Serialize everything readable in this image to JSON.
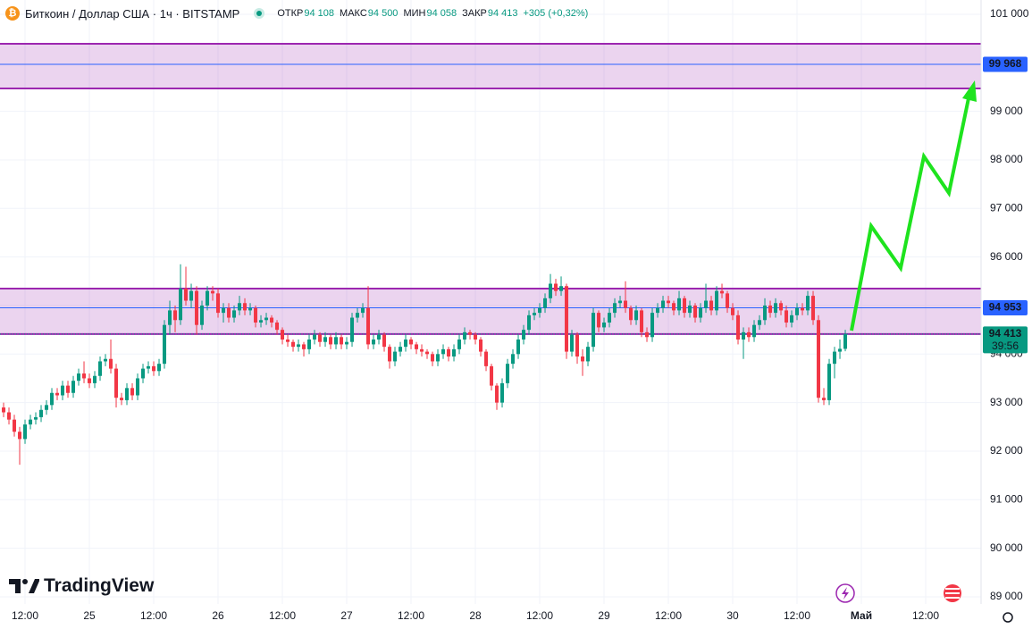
{
  "chart_data": {
    "type": "candlestick",
    "title": "Биткоин / Доллар США · 1ч · BITSTAMP",
    "ohlc_header": [
      {
        "label": "ОТКР",
        "value": "94 108"
      },
      {
        "label": "МАКС",
        "value": "94 500"
      },
      {
        "label": "МИН",
        "value": "94 058"
      },
      {
        "label": "ЗАКР",
        "value": "94 413"
      }
    ],
    "change": "+305 (+0,32%)",
    "watermark": "TradingView",
    "up_color": "#089981",
    "down_color": "#f23645",
    "zone_color": "#9c27b0",
    "line_color": "#2962ff",
    "xlim": [
      -0.67,
      182.33
    ],
    "ylim": [
      88852,
      101294
    ],
    "grid": true,
    "xticks": [
      {
        "value": 4,
        "label": "12:00"
      },
      {
        "value": 16,
        "label": "25"
      },
      {
        "value": 28,
        "label": "12:00"
      },
      {
        "value": 40,
        "label": "26"
      },
      {
        "value": 52,
        "label": "12:00"
      },
      {
        "value": 64,
        "label": "27"
      },
      {
        "value": 76,
        "label": "12:00"
      },
      {
        "value": 88,
        "label": "28"
      },
      {
        "value": 100,
        "label": "12:00"
      },
      {
        "value": 112,
        "label": "29"
      },
      {
        "value": 124,
        "label": "12:00"
      },
      {
        "value": 136,
        "label": "30"
      },
      {
        "value": 148,
        "label": "12:00"
      },
      {
        "value": 160,
        "label": "Май"
      },
      {
        "value": 172,
        "label": "12:00"
      }
    ],
    "yticks": [
      {
        "value": 89000,
        "label": "89 000"
      },
      {
        "value": 90000,
        "label": "90 000"
      },
      {
        "value": 91000,
        "label": "91 000"
      },
      {
        "value": 92000,
        "label": "92 000"
      },
      {
        "value": 93000,
        "label": "93 000"
      },
      {
        "value": 94000,
        "label": "94 000"
      },
      {
        "value": 95000,
        "label": "95 000"
      },
      {
        "value": 96000,
        "label": "96 000"
      },
      {
        "value": 97000,
        "label": "97 000"
      },
      {
        "value": 98000,
        "label": "98 000"
      },
      {
        "value": 99000,
        "label": "99 000"
      },
      {
        "value": 101000,
        "label": "101 000"
      }
    ],
    "zones": [
      [
        99472,
        100393
      ],
      [
        94413,
        95349
      ]
    ],
    "price_lines": [
      {
        "value": 99968,
        "label": "99 968",
        "color": "#2962ff"
      },
      {
        "value": 94953,
        "label": "94 953",
        "color": "#2962ff"
      },
      {
        "value": 94413,
        "label": "94 413",
        "color": "#089981",
        "countdown": "39:56"
      }
    ],
    "candles": [
      [
        92900,
        93000,
        92700,
        92800
      ],
      [
        92800,
        92900,
        92550,
        92650
      ],
      [
        92650,
        92750,
        92300,
        92400
      ],
      [
        92400,
        92500,
        91720,
        92250
      ],
      [
        92250,
        92650,
        92150,
        92550
      ],
      [
        92550,
        92750,
        92450,
        92650
      ],
      [
        92650,
        92800,
        92550,
        92700
      ],
      [
        92700,
        92950,
        92600,
        92850
      ],
      [
        92850,
        93050,
        92750,
        92950
      ],
      [
        92950,
        93300,
        92850,
        93200
      ],
      [
        93200,
        93300,
        93050,
        93150
      ],
      [
        93150,
        93450,
        93050,
        93350
      ],
      [
        93350,
        93450,
        93100,
        93200
      ],
      [
        93200,
        93550,
        93100,
        93450
      ],
      [
        93450,
        93700,
        93350,
        93600
      ],
      [
        93600,
        93850,
        93400,
        93500
      ],
      [
        93500,
        93600,
        93300,
        93400
      ],
      [
        93400,
        93650,
        93300,
        93550
      ],
      [
        93550,
        93950,
        93450,
        93850
      ],
      [
        93850,
        94000,
        93750,
        93900
      ],
      [
        93900,
        94300,
        93600,
        93700
      ],
      [
        93700,
        93800,
        92900,
        93100
      ],
      [
        93100,
        93200,
        92950,
        93050
      ],
      [
        93050,
        93400,
        92950,
        93300
      ],
      [
        93300,
        93400,
        93050,
        93150
      ],
      [
        93150,
        93600,
        93050,
        93500
      ],
      [
        93500,
        93800,
        93400,
        93700
      ],
      [
        93700,
        93850,
        93600,
        93750
      ],
      [
        93750,
        93850,
        93550,
        93650
      ],
      [
        93650,
        93900,
        93550,
        93800
      ],
      [
        93800,
        94700,
        93700,
        94600
      ],
      [
        94600,
        95100,
        94400,
        94900
      ],
      [
        94900,
        95000,
        94450,
        94700
      ],
      [
        94700,
        95850,
        94600,
        95350
      ],
      [
        95350,
        95800,
        95000,
        95100
      ],
      [
        95100,
        95450,
        94950,
        95300
      ],
      [
        95300,
        95400,
        94400,
        94600
      ],
      [
        94600,
        95100,
        94500,
        95000
      ],
      [
        95000,
        95400,
        94900,
        95300
      ],
      [
        95300,
        95400,
        95100,
        95250
      ],
      [
        95250,
        95350,
        94750,
        94850
      ],
      [
        94850,
        95050,
        94650,
        94950
      ],
      [
        94950,
        95050,
        94650,
        94750
      ],
      [
        94750,
        95000,
        94650,
        94900
      ],
      [
        94900,
        95200,
        94800,
        95050
      ],
      [
        95050,
        95150,
        94800,
        94900
      ],
      [
        94900,
        95050,
        94800,
        94950
      ],
      [
        94950,
        95000,
        94550,
        94650
      ],
      [
        94650,
        94800,
        94550,
        94700
      ],
      [
        94700,
        94850,
        94600,
        94750
      ],
      [
        94750,
        94800,
        94550,
        94650
      ],
      [
        94650,
        94700,
        94400,
        94500
      ],
      [
        94500,
        94550,
        94200,
        94300
      ],
      [
        94300,
        94400,
        94150,
        94250
      ],
      [
        94250,
        94300,
        94050,
        94150
      ],
      [
        94150,
        94300,
        94050,
        94200
      ],
      [
        94200,
        94250,
        93950,
        94100
      ],
      [
        94100,
        94400,
        94000,
        94300
      ],
      [
        94300,
        94500,
        94200,
        94400
      ],
      [
        94400,
        94450,
        94150,
        94250
      ],
      [
        94250,
        94450,
        94150,
        94350
      ],
      [
        94350,
        94400,
        94100,
        94200
      ],
      [
        94200,
        94450,
        94100,
        94350
      ],
      [
        94350,
        94400,
        94100,
        94200
      ],
      [
        94200,
        94350,
        94100,
        94250
      ],
      [
        94250,
        94850,
        94150,
        94750
      ],
      [
        94750,
        94950,
        94650,
        94850
      ],
      [
        94850,
        95050,
        94750,
        94950
      ],
      [
        94950,
        95400,
        94100,
        94200
      ],
      [
        94200,
        94400,
        94100,
        94300
      ],
      [
        94300,
        94500,
        94200,
        94400
      ],
      [
        94400,
        94450,
        94050,
        94150
      ],
      [
        94150,
        94200,
        93700,
        93850
      ],
      [
        93850,
        94150,
        93750,
        94050
      ],
      [
        94050,
        94250,
        93950,
        94150
      ],
      [
        94150,
        94400,
        94050,
        94300
      ],
      [
        94300,
        94350,
        94100,
        94200
      ],
      [
        94200,
        94250,
        94000,
        94100
      ],
      [
        94100,
        94200,
        93950,
        94050
      ],
      [
        94050,
        94100,
        93900,
        94000
      ],
      [
        94000,
        94050,
        93750,
        93850
      ],
      [
        93850,
        94100,
        93750,
        94000
      ],
      [
        94000,
        94200,
        93900,
        94100
      ],
      [
        94100,
        94150,
        93850,
        93950
      ],
      [
        93950,
        94200,
        93850,
        94100
      ],
      [
        94100,
        94400,
        94000,
        94300
      ],
      [
        94300,
        94550,
        94200,
        94450
      ],
      [
        94450,
        94500,
        94300,
        94400
      ],
      [
        94400,
        94450,
        94200,
        94300
      ],
      [
        94300,
        94350,
        93950,
        94050
      ],
      [
        94050,
        94100,
        93650,
        93750
      ],
      [
        93750,
        93800,
        93250,
        93350
      ],
      [
        93350,
        93400,
        92850,
        93000
      ],
      [
        93000,
        93500,
        92900,
        93400
      ],
      [
        93400,
        93900,
        93300,
        93800
      ],
      [
        93800,
        94100,
        93700,
        94000
      ],
      [
        94000,
        94400,
        93900,
        94300
      ],
      [
        94300,
        94600,
        94200,
        94500
      ],
      [
        94500,
        94900,
        94400,
        94800
      ],
      [
        94800,
        94950,
        94700,
        94850
      ],
      [
        94850,
        95050,
        94750,
        94950
      ],
      [
        94950,
        95250,
        94850,
        95150
      ],
      [
        95150,
        95650,
        95050,
        95450
      ],
      [
        95450,
        95550,
        95200,
        95300
      ],
      [
        95300,
        95600,
        95200,
        95400
      ],
      [
        95400,
        95450,
        93900,
        94050
      ],
      [
        94050,
        94500,
        93950,
        94400
      ],
      [
        94400,
        94450,
        93800,
        93950
      ],
      [
        93950,
        94100,
        93550,
        93850
      ],
      [
        93850,
        94250,
        93750,
        94150
      ],
      [
        94150,
        94950,
        94050,
        94850
      ],
      [
        94850,
        94900,
        94450,
        94550
      ],
      [
        94550,
        94750,
        94450,
        94650
      ],
      [
        94650,
        94950,
        94550,
        94850
      ],
      [
        94850,
        95150,
        94750,
        95050
      ],
      [
        95050,
        95200,
        94950,
        95100
      ],
      [
        95100,
        95500,
        94850,
        94950
      ],
      [
        94950,
        95000,
        94600,
        94700
      ],
      [
        94700,
        95000,
        94600,
        94900
      ],
      [
        94900,
        94950,
        94350,
        94450
      ],
      [
        94450,
        94550,
        94250,
        94350
      ],
      [
        94350,
        94950,
        94250,
        94850
      ],
      [
        94850,
        95050,
        94750,
        94950
      ],
      [
        94950,
        95200,
        94850,
        95100
      ],
      [
        95100,
        95200,
        94950,
        95050
      ],
      [
        95050,
        95100,
        94800,
        94900
      ],
      [
        94900,
        95300,
        94800,
        95150
      ],
      [
        95150,
        95200,
        94750,
        94850
      ],
      [
        94850,
        95100,
        94750,
        95000
      ],
      [
        95000,
        95050,
        94650,
        94750
      ],
      [
        94750,
        95050,
        94650,
        94950
      ],
      [
        94950,
        95450,
        94850,
        95100
      ],
      [
        95100,
        95200,
        94800,
        94900
      ],
      [
        94900,
        95400,
        94800,
        95300
      ],
      [
        95300,
        95450,
        95150,
        95250
      ],
      [
        95250,
        95300,
        94850,
        94950
      ],
      [
        94950,
        95050,
        94700,
        94800
      ],
      [
        94800,
        94900,
        94200,
        94300
      ],
      [
        94300,
        94550,
        93900,
        94450
      ],
      [
        94450,
        94550,
        94250,
        94350
      ],
      [
        94350,
        94700,
        94250,
        94600
      ],
      [
        94600,
        94800,
        94500,
        94700
      ],
      [
        94700,
        95150,
        94600,
        95000
      ],
      [
        95000,
        95100,
        94750,
        94850
      ],
      [
        94850,
        95150,
        94750,
        95050
      ],
      [
        95050,
        95100,
        94800,
        94900
      ],
      [
        94900,
        95000,
        94550,
        94650
      ],
      [
        94650,
        94900,
        94550,
        94800
      ],
      [
        94800,
        95050,
        94700,
        94950
      ],
      [
        94950,
        95050,
        94800,
        94900
      ],
      [
        94900,
        95300,
        94800,
        95200
      ],
      [
        95200,
        95300,
        94600,
        94700
      ],
      [
        94700,
        94800,
        93000,
        93100
      ],
      [
        93100,
        93300,
        92950,
        93050
      ],
      [
        93050,
        93900,
        92950,
        93800
      ],
      [
        93800,
        94150,
        93500,
        94050
      ],
      [
        94050,
        94300,
        93900,
        94108
      ],
      [
        94108,
        94500,
        94058,
        94413
      ]
    ]
  }
}
